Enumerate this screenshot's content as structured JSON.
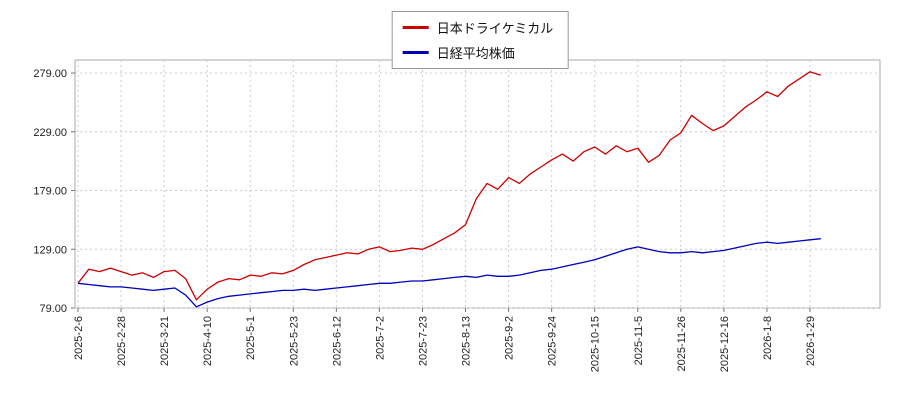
{
  "chart_data": {
    "type": "line",
    "title": "",
    "legend_position": "top-center",
    "grid": true,
    "ylim": [
      79,
      279
    ],
    "yticks": [
      {
        "value": 279,
        "label": "279.00"
      },
      {
        "value": 229,
        "label": "229.00"
      },
      {
        "value": 179,
        "label": "179.00"
      },
      {
        "value": 129,
        "label": "129.00"
      },
      {
        "value": 79,
        "label": "79.00"
      }
    ],
    "x_tick_labels": [
      "2025-2-6",
      "2025-2-28",
      "2025-3-21",
      "2025-4-10",
      "2025-5-1",
      "2025-5-23",
      "2025-6-12",
      "2025-7-2",
      "2025-7-23",
      "2025-8-13",
      "2025-9-2",
      "2025-9-24",
      "2025-10-15",
      "2025-11-5",
      "2025-11-26",
      "2025-12-16",
      "2026-1-8",
      "2026-1-29"
    ],
    "tick_every": 4,
    "series": [
      {
        "name": "日本ドライケミカル",
        "color": "#cc0000",
        "values": [
          100,
          112,
          110,
          113,
          110,
          107,
          109,
          105,
          110,
          111,
          104,
          86,
          95,
          101,
          104,
          103,
          107,
          106,
          109,
          108,
          111,
          116,
          120,
          122,
          124,
          126,
          125,
          129,
          131,
          127,
          128,
          130,
          129,
          133,
          138,
          143,
          150,
          172,
          185,
          180,
          190,
          185,
          193,
          199,
          205,
          210,
          204,
          212,
          216,
          210,
          217,
          212,
          215,
          203,
          209,
          222,
          228,
          243,
          236,
          230,
          234,
          242,
          250,
          256,
          263,
          259,
          268,
          274,
          280,
          277
        ]
      },
      {
        "name": "日経平均株価",
        "color": "#0000bb",
        "values": [
          100,
          99,
          98,
          97,
          97,
          96,
          95,
          94,
          95,
          96,
          90,
          80,
          84,
          87,
          89,
          90,
          91,
          92,
          93,
          94,
          94,
          95,
          94,
          95,
          96,
          97,
          98,
          99,
          100,
          100,
          101,
          102,
          102,
          103,
          104,
          105,
          106,
          105,
          107,
          106,
          106,
          107,
          109,
          111,
          112,
          114,
          116,
          118,
          120,
          123,
          126,
          129,
          131,
          129,
          127,
          126,
          126,
          127,
          126,
          127,
          128,
          130,
          132,
          134,
          135,
          134,
          135,
          136,
          137,
          138
        ]
      }
    ]
  }
}
